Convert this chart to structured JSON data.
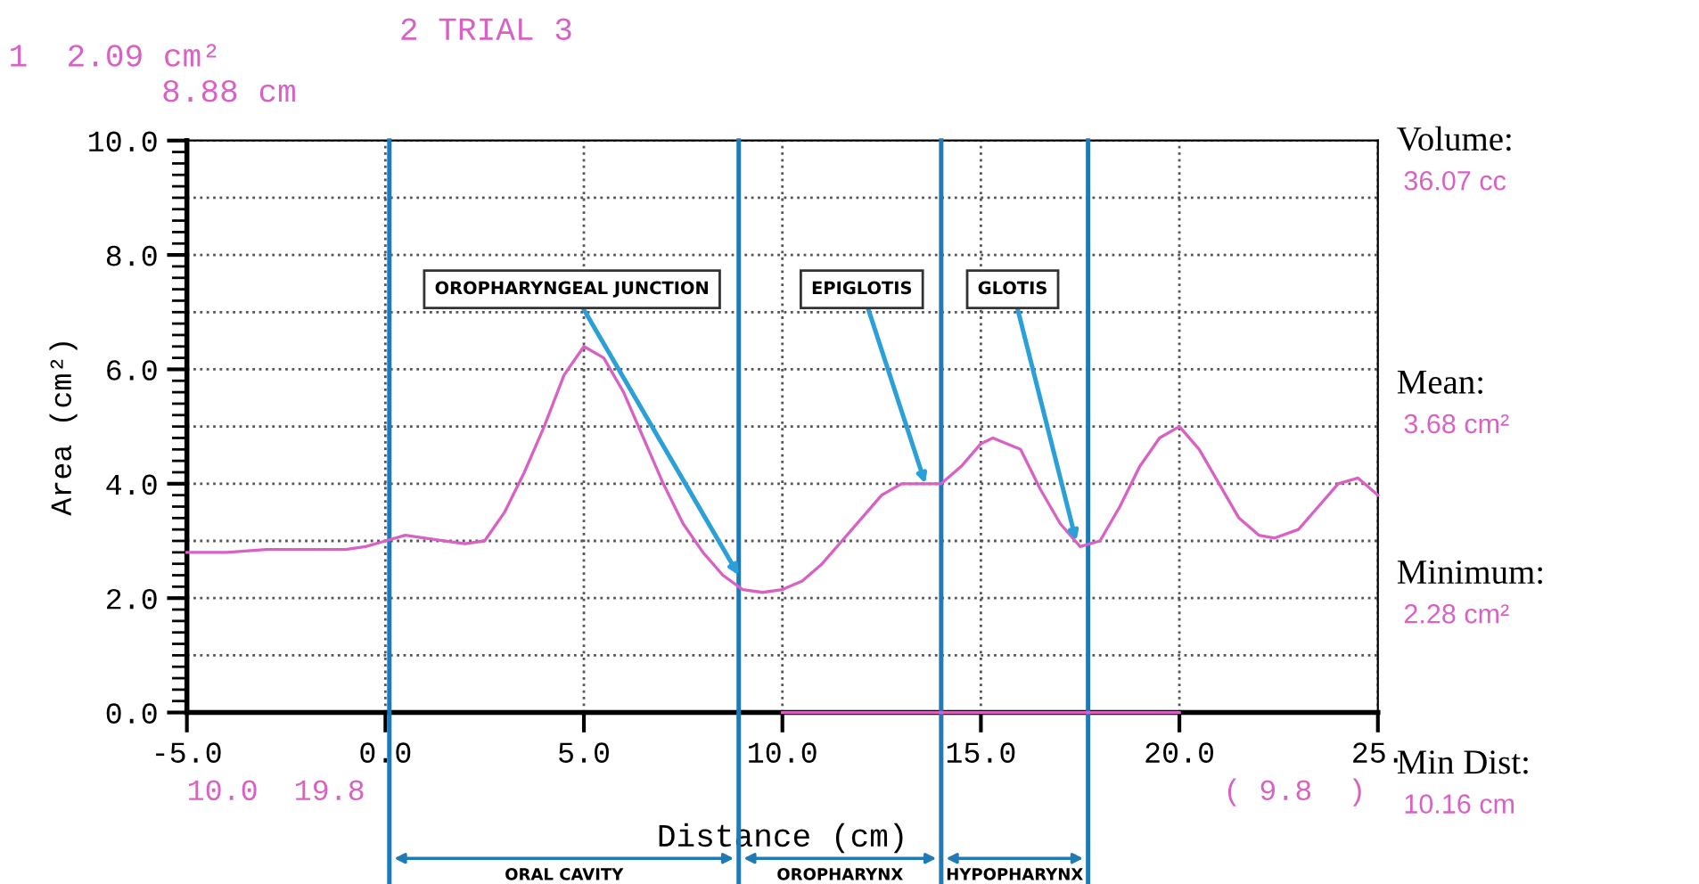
{
  "chart_data": {
    "type": "line",
    "xlabel": "Distance (cm)",
    "ylabel": "Area (cm²)",
    "xlim": [
      -5,
      25
    ],
    "xticks": [
      {
        "value": -5,
        "label": "-5.0"
      },
      {
        "value": 0,
        "label": "0.0"
      },
      {
        "value": 5,
        "label": "5.0"
      },
      {
        "value": 10,
        "label": "10.0"
      },
      {
        "value": 15,
        "label": "15.0"
      },
      {
        "value": 20,
        "label": "20.0"
      },
      {
        "value": 25,
        "label": "25."
      }
    ],
    "ylim": [
      0,
      10
    ],
    "yticks": [
      {
        "value": 0,
        "label": "0.0"
      },
      {
        "value": 2,
        "label": "2.0"
      },
      {
        "value": 4,
        "label": "4.0"
      },
      {
        "value": 6,
        "label": "6.0"
      },
      {
        "value": 8,
        "label": "8.0"
      },
      {
        "value": 10,
        "label": "10.0"
      }
    ],
    "grid": true,
    "legend": false,
    "marker": "none",
    "line_style": "solid",
    "series": [
      {
        "color": "#d862c4",
        "x": [
          -5,
          -4,
          -3,
          -2,
          -1,
          -0.5,
          0,
          0.5,
          1,
          2,
          2.5,
          3,
          3.5,
          4,
          4.5,
          5,
          5.5,
          6,
          6.5,
          7,
          7.5,
          8,
          8.5,
          9,
          9.5,
          10,
          10.5,
          11,
          11.5,
          12,
          12.5,
          13,
          13.5,
          14,
          14.5,
          15,
          15.3,
          16,
          16.5,
          17,
          17.5,
          18,
          18.5,
          19,
          19.5,
          20,
          20.5,
          21,
          21.5,
          22,
          22.4,
          23,
          23.5,
          24,
          24.5,
          25
        ],
        "values": [
          2.8,
          2.8,
          2.85,
          2.85,
          2.85,
          2.9,
          3.0,
          3.1,
          3.05,
          2.95,
          3.0,
          3.5,
          4.2,
          5.0,
          5.9,
          6.4,
          6.2,
          5.6,
          4.8,
          4.0,
          3.3,
          2.8,
          2.4,
          2.15,
          2.1,
          2.15,
          2.3,
          2.6,
          3.0,
          3.4,
          3.8,
          4.0,
          4.0,
          4.0,
          4.3,
          4.7,
          4.8,
          4.6,
          3.9,
          3.3,
          2.9,
          3.0,
          3.6,
          4.3,
          4.8,
          5.0,
          4.6,
          4.0,
          3.4,
          3.1,
          3.05,
          3.2,
          3.6,
          4.0,
          4.1,
          3.8
        ]
      },
      {
        "color": "#d862c4",
        "x": [
          10,
          20
        ],
        "values": [
          0,
          0
        ]
      }
    ],
    "ref_lines": [
      {
        "axis": "x",
        "value": 0.1,
        "color": "#1f7ab5"
      },
      {
        "axis": "x",
        "value": 8.9,
        "color": "#1f7ab5"
      },
      {
        "axis": "x",
        "value": 14.0,
        "color": "#1f7ab5"
      },
      {
        "axis": "x",
        "value": 17.7,
        "color": "#1f7ab5"
      }
    ],
    "annotations": [
      "1  2.09 cm²",
      "2 TRIAL 3",
      "8.88 cm",
      "Volume:",
      "36.07 cc",
      "Mean:",
      "3.68 cm²",
      "Minimum:",
      "2.28 cm²",
      "Min Dist:",
      "10.16 cm",
      "10.0  19.8",
      "( 9.8  )",
      "ORAL CAVITY",
      "OROPHARYNX",
      "HYPOPHARYNX",
      {
        "text": "OROPHARYNGEAL JUNCTION",
        "x": 8.9,
        "y": 2.4
      },
      {
        "text": "EPIGLOTIS",
        "x": 13.6,
        "y": 4.0
      },
      {
        "text": "GLOTIS",
        "x": 17.4,
        "y": 3.0
      }
    ]
  }
}
